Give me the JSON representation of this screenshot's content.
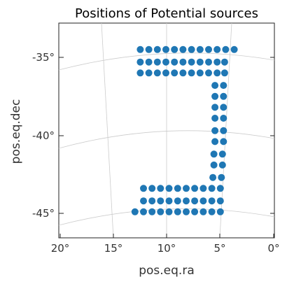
{
  "chart_data": {
    "type": "scatter",
    "title": "Positions of Potential sources",
    "xlabel": "pos.eq.ra",
    "ylabel": "pos.eq.dec",
    "x_ticks": [
      "20°",
      "15°",
      "10°",
      "5°",
      "0°"
    ],
    "y_ticks": [
      "-35°",
      "-40°",
      "-45°"
    ],
    "xlim": [
      20,
      0
    ],
    "ylim": [
      -46.6,
      -32.2
    ],
    "grid": true,
    "projection": "sky (curved RA/Dec grid)",
    "marker_color": "#1f77b4",
    "rows": [
      {
        "dec": -34.5,
        "ra": [
          12.5,
          11.7,
          10.9,
          10.1,
          9.3,
          8.5,
          7.7,
          6.9,
          6.1,
          5.3,
          4.5,
          3.7
        ]
      },
      {
        "dec": -35.3,
        "ra": [
          12.5,
          11.7,
          10.9,
          10.1,
          9.3,
          8.5,
          7.7,
          6.9,
          6.1,
          5.3,
          4.6
        ]
      },
      {
        "dec": -36.0,
        "ra": [
          12.5,
          11.7,
          10.9,
          10.1,
          9.3,
          8.5,
          7.7,
          6.9,
          6.1,
          5.3,
          4.6
        ]
      },
      {
        "dec": -36.8,
        "ra": [
          5.5,
          4.7
        ]
      },
      {
        "dec": -37.5,
        "ra": [
          5.5,
          4.7
        ]
      },
      {
        "dec": -38.2,
        "ra": [
          5.5,
          4.7
        ]
      },
      {
        "dec": -38.9,
        "ra": [
          5.5,
          4.7
        ]
      },
      {
        "dec": -39.7,
        "ra": [
          5.5,
          4.7
        ]
      },
      {
        "dec": -40.4,
        "ra": [
          5.5,
          4.7
        ]
      },
      {
        "dec": -41.2,
        "ra": [
          5.6,
          4.8
        ]
      },
      {
        "dec": -41.9,
        "ra": [
          5.6,
          4.8
        ]
      },
      {
        "dec": -42.7,
        "ra": [
          5.7,
          4.9
        ]
      },
      {
        "dec": -43.4,
        "ra": [
          12.2,
          11.4,
          10.6,
          9.8,
          9.0,
          8.2,
          7.4,
          6.6,
          5.8,
          5.0
        ]
      },
      {
        "dec": -44.2,
        "ra": [
          12.2,
          11.4,
          10.6,
          9.8,
          9.0,
          8.2,
          7.4,
          6.6,
          5.8,
          5.0
        ]
      },
      {
        "dec": -44.9,
        "ra": [
          13.0,
          12.2,
          11.4,
          10.6,
          9.8,
          9.0,
          8.2,
          7.4,
          6.6,
          5.8,
          5.0
        ]
      }
    ]
  }
}
